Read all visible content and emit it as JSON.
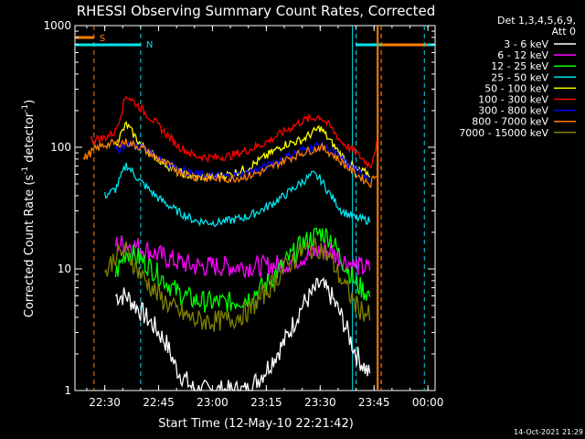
{
  "chart_data": {
    "type": "line",
    "title": "RHESSI Observing Summary Count Rates, Corrected",
    "xlabel": "Start Time (12-May-10 22:21:42)",
    "ylabel": "Corrected Count Rate (s⁻¹ detector⁻¹)",
    "ylabel_parts": {
      "main": "Corrected Count Rate (s",
      "sup1": "-1",
      "mid": " detector",
      "sup2": "-1",
      "end": ")"
    },
    "xlim": [
      "22:21:42",
      "00:02:00"
    ],
    "x_ticks": [
      "22:30",
      "22:45",
      "23:00",
      "23:15",
      "23:30",
      "23:45",
      "00:00"
    ],
    "y_scale": "log",
    "ylim": [
      1,
      1000
    ],
    "y_ticks": [
      "1",
      "10",
      "100",
      "1000"
    ],
    "legend_header": [
      "Det 1,3,4,5,6,9,",
      "Att 0"
    ],
    "legend_placement": "right",
    "footer_date": "14-Oct-2021 21:29",
    "markers": [
      {
        "label": "S",
        "color": "#ff7f00",
        "time": "22:27",
        "flag_start": "22:21:42",
        "flag_end": "22:27"
      },
      {
        "label": "N",
        "color": "#00e5ee",
        "time": "22:40",
        "flag_start": "22:21:42",
        "flag_end": "22:40"
      },
      {
        "label": "",
        "color": "#00e5ee",
        "time": "23:40",
        "flag_start": "23:40",
        "flag_end": "00:02"
      },
      {
        "label": "",
        "color": "#ff7f00",
        "time": "23:47",
        "flag_start": "23:47",
        "flag_end": "00:00"
      },
      {
        "label": "",
        "color": "#ff7f00",
        "time": "23:47",
        "flag_start": "",
        "flag_end": ""
      },
      {
        "label": "",
        "color": "#00e5ee",
        "time": "23:59",
        "flag_start": "",
        "flag_end": ""
      }
    ],
    "series": [
      {
        "name": "3 - 6 keV",
        "color": "#ffffff",
        "x": [
          "22:33",
          "22:36",
          "22:40",
          "22:44",
          "22:47",
          "22:50",
          "22:55",
          "23:00",
          "23:05",
          "23:10",
          "23:15",
          "23:20",
          "23:25",
          "23:30",
          "23:33",
          "23:36",
          "23:40",
          "23:44"
        ],
        "y": [
          6,
          6,
          4.5,
          3.3,
          2.5,
          1.5,
          1,
          1,
          1,
          1,
          1.5,
          2.5,
          5,
          7.5,
          6,
          4,
          2,
          1.3
        ]
      },
      {
        "name": "6 - 12 keV",
        "color": "#ff00ff",
        "x": [
          "22:33",
          "22:36",
          "22:40",
          "22:45",
          "22:50",
          "22:55",
          "23:00",
          "23:05",
          "23:10",
          "23:15",
          "23:20",
          "23:25",
          "23:30",
          "23:33",
          "23:36",
          "23:40",
          "23:44"
        ],
        "y": [
          16,
          16,
          15,
          13,
          11.5,
          10.5,
          10.5,
          10.5,
          10.5,
          10.5,
          11,
          12.5,
          14,
          14,
          12,
          10.5,
          10
        ]
      },
      {
        "name": "12 - 25 keV",
        "color": "#00ff00",
        "x": [
          "22:33",
          "22:36",
          "22:40",
          "22:45",
          "22:50",
          "22:55",
          "23:00",
          "23:05",
          "23:10",
          "23:15",
          "23:20",
          "23:25",
          "23:30",
          "23:33",
          "23:36",
          "23:40",
          "23:44"
        ],
        "y": [
          9,
          14,
          12,
          9,
          6.5,
          5.5,
          5.3,
          5.3,
          5.8,
          7.5,
          11,
          16,
          20,
          18,
          12,
          7.5,
          6
        ]
      },
      {
        "name": "25 - 50 keV",
        "color": "#00e5ee",
        "x": [
          "22:30",
          "22:33",
          "22:36",
          "22:40",
          "22:45",
          "22:50",
          "22:55",
          "23:00",
          "23:05",
          "23:10",
          "23:15",
          "23:20",
          "23:25",
          "23:28",
          "23:30",
          "23:33",
          "23:36",
          "23:40",
          "23:44"
        ],
        "y": [
          40,
          45,
          72,
          52,
          38,
          30,
          25,
          24,
          25,
          27,
          32,
          40,
          52,
          60,
          55,
          40,
          30,
          26,
          25
        ]
      },
      {
        "name": "50 - 100 keV",
        "color": "#ffff00",
        "x": [
          "22:33",
          "22:36",
          "22:40",
          "22:45",
          "22:50",
          "22:55",
          "23:00",
          "23:05",
          "23:10",
          "23:15",
          "23:20",
          "23:25",
          "23:30",
          "23:33",
          "23:36",
          "23:40",
          "23:44"
        ],
        "y": [
          105,
          155,
          105,
          80,
          63,
          57,
          57,
          60,
          68,
          85,
          105,
          115,
          145,
          110,
          85,
          65,
          60
        ]
      },
      {
        "name": "100 - 300 keV",
        "color": "#ff0000",
        "x": [
          "22:26",
          "22:30",
          "22:33",
          "22:36",
          "22:40",
          "22:45",
          "22:50",
          "22:55",
          "23:00",
          "23:05",
          "23:10",
          "23:15",
          "23:20",
          "23:25",
          "23:30",
          "23:33",
          "23:36",
          "23:40",
          "23:44",
          "23:46"
        ],
        "y": [
          115,
          120,
          135,
          270,
          210,
          150,
          105,
          85,
          82,
          85,
          95,
          110,
          135,
          165,
          180,
          145,
          110,
          90,
          70,
          115
        ]
      },
      {
        "name": "300 - 800 keV",
        "color": "#0000ff",
        "x": [
          "22:33",
          "22:36",
          "22:40",
          "22:45",
          "22:50",
          "22:55",
          "23:00",
          "23:05",
          "23:10",
          "23:15",
          "23:20",
          "23:25",
          "23:30",
          "23:33",
          "23:36",
          "23:40",
          "23:44"
        ],
        "y": [
          92,
          108,
          102,
          82,
          67,
          60,
          58,
          58,
          62,
          70,
          82,
          95,
          105,
          95,
          80,
          64,
          57
        ]
      },
      {
        "name": "800 - 7000 keV",
        "color": "#ff7f00",
        "x": [
          "22:24",
          "22:27",
          "22:30",
          "22:33",
          "22:36",
          "22:40",
          "22:45",
          "22:50",
          "22:55",
          "23:00",
          "23:05",
          "23:10",
          "23:15",
          "23:20",
          "23:25",
          "23:30",
          "23:33",
          "23:36",
          "23:40",
          "23:44",
          "23:46"
        ],
        "y": [
          80,
          95,
          105,
          108,
          110,
          100,
          80,
          65,
          57,
          55,
          55,
          58,
          65,
          78,
          90,
          100,
          90,
          75,
          60,
          50,
          65
        ]
      },
      {
        "name": "7000 - 15000 keV",
        "color": "#808000",
        "x": [
          "22:30",
          "22:33",
          "22:36",
          "22:40",
          "22:45",
          "22:50",
          "22:55",
          "23:00",
          "23:05",
          "23:10",
          "23:15",
          "23:20",
          "23:25",
          "23:30",
          "23:33",
          "23:36",
          "23:40",
          "23:44"
        ],
        "y": [
          9,
          13,
          14,
          9,
          6,
          4.5,
          3.8,
          3.7,
          3.8,
          4.5,
          6.5,
          10,
          14,
          15,
          12,
          8,
          5,
          4
        ]
      }
    ]
  }
}
